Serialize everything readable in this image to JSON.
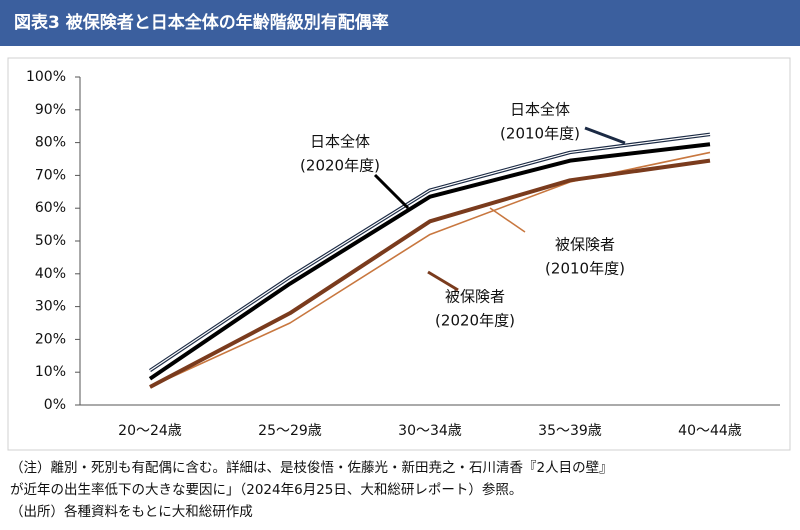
{
  "chart_data": {
    "type": "line",
    "title": "図表3 被保険者と日本全体の年齢階級別有配偶率",
    "categories": [
      "20～24歳",
      "25～29歳",
      "30～34歳",
      "35～39歳",
      "40～44歳"
    ],
    "ylim": [
      0,
      100
    ],
    "yticks": [
      {
        "value": 0,
        "label": "0%"
      },
      {
        "value": 10,
        "label": "10%"
      },
      {
        "value": 20,
        "label": "20%"
      },
      {
        "value": 30,
        "label": "30%"
      },
      {
        "value": 40,
        "label": "40%"
      },
      {
        "value": 50,
        "label": "50%"
      },
      {
        "value": 60,
        "label": "60%"
      },
      {
        "value": 70,
        "label": "70%"
      },
      {
        "value": 80,
        "label": "80%"
      },
      {
        "value": 90,
        "label": "90%"
      },
      {
        "value": 100,
        "label": "100%"
      }
    ],
    "series": [
      {
        "label_lines": [
          "日本全体",
          "(2010年度)"
        ],
        "color": "#1b2a44",
        "values": [
          10.5,
          39,
          65.5,
          77,
          82.5
        ]
      },
      {
        "label_lines": [
          "日本全体",
          "(2020年度)"
        ],
        "color": "#000000",
        "values": [
          8,
          37,
          63.5,
          74.5,
          79.5
        ]
      },
      {
        "label_lines": [
          "被保険者",
          "(2010年度)"
        ],
        "color": "#c8773f",
        "values": [
          5.5,
          25,
          52,
          68,
          77
        ]
      },
      {
        "label_lines": [
          "被保険者",
          "(2020年度)"
        ],
        "color": "#7a3b1d",
        "values": [
          5.5,
          28,
          56,
          68.5,
          74.5
        ]
      }
    ],
    "notes": [
      "（注）離別・死別も有配偶に含む。詳細は、是枝俊悟・佐藤光・新田尭之・石川清香『2人目の壁』",
      "が近年の出生率低下の大きな要因に」（2024年6月25日、大和総研レポート）参照。",
      "（出所）各種資料をもとに大和総研作成"
    ]
  }
}
